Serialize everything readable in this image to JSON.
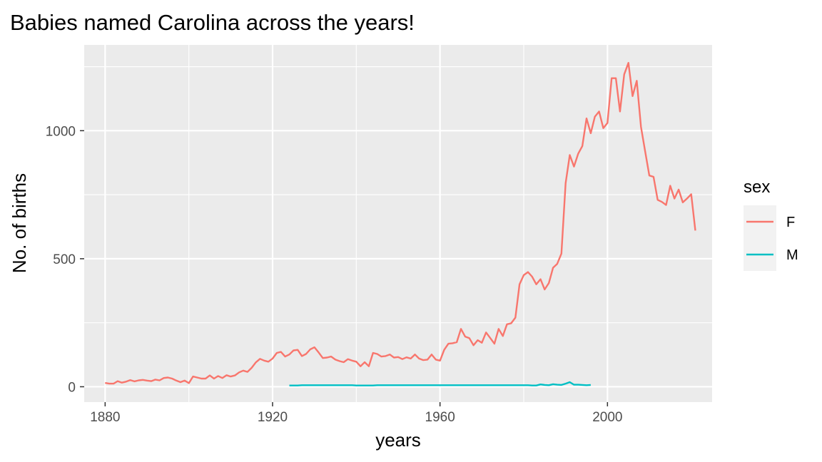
{
  "chart_data": {
    "type": "line",
    "title": "Babies named Carolina across the years!",
    "xlabel": "years",
    "ylabel": "No. of births",
    "xlim": [
      1875,
      2025
    ],
    "ylim": [
      -60,
      1335
    ],
    "x_ticks": [
      1880,
      1920,
      1960,
      2000
    ],
    "y_ticks": [
      0,
      500,
      1000
    ],
    "x_tick_labels": [
      "1880",
      "1920",
      "1960",
      "2000"
    ],
    "y_tick_labels": [
      "0",
      "500",
      "1000"
    ],
    "grid": true,
    "legend": {
      "title": "sex",
      "position": "right"
    },
    "series": [
      {
        "name": "F",
        "color": "#F8766D",
        "x": [
          1880,
          1881,
          1882,
          1883,
          1884,
          1885,
          1886,
          1887,
          1888,
          1889,
          1890,
          1891,
          1892,
          1893,
          1894,
          1895,
          1896,
          1897,
          1898,
          1899,
          1900,
          1901,
          1902,
          1903,
          1904,
          1905,
          1906,
          1907,
          1908,
          1909,
          1910,
          1911,
          1912,
          1913,
          1914,
          1915,
          1916,
          1917,
          1918,
          1919,
          1920,
          1921,
          1922,
          1923,
          1924,
          1925,
          1926,
          1927,
          1928,
          1929,
          1930,
          1931,
          1932,
          1933,
          1934,
          1935,
          1936,
          1937,
          1938,
          1939,
          1940,
          1941,
          1942,
          1943,
          1944,
          1945,
          1946,
          1947,
          1948,
          1949,
          1950,
          1951,
          1952,
          1953,
          1954,
          1955,
          1956,
          1957,
          1958,
          1959,
          1960,
          1961,
          1962,
          1963,
          1964,
          1965,
          1966,
          1967,
          1968,
          1969,
          1970,
          1971,
          1972,
          1973,
          1974,
          1975,
          1976,
          1977,
          1978,
          1979,
          1980,
          1981,
          1982,
          1983,
          1984,
          1985,
          1986,
          1987,
          1988,
          1989,
          1990,
          1991,
          1992,
          1993,
          1994,
          1995,
          1996,
          1997,
          1998,
          1999,
          2000,
          2001,
          2002,
          2003,
          2004,
          2005,
          2006,
          2007,
          2008,
          2009,
          2010,
          2011,
          2012,
          2013,
          2014,
          2015,
          2016,
          2017,
          2018,
          2019,
          2020,
          2021
        ],
        "values": [
          15,
          12,
          12,
          22,
          16,
          20,
          26,
          21,
          25,
          27,
          24,
          22,
          28,
          25,
          34,
          36,
          32,
          24,
          18,
          24,
          14,
          40,
          36,
          32,
          32,
          44,
          32,
          42,
          34,
          45,
          40,
          44,
          56,
          63,
          58,
          74,
          95,
          109,
          102,
          98,
          110,
          132,
          136,
          118,
          126,
          142,
          144,
          120,
          128,
          146,
          154,
          134,
          112,
          114,
          118,
          106,
          100,
          96,
          108,
          102,
          98,
          80,
          96,
          80,
          132,
          128,
          118,
          120,
          126,
          114,
          116,
          108,
          115,
          110,
          126,
          110,
          104,
          106,
          126,
          106,
          102,
          144,
          168,
          170,
          174,
          226,
          196,
          190,
          162,
          182,
          172,
          212,
          190,
          168,
          226,
          198,
          244,
          248,
          270,
          400,
          436,
          448,
          430,
          400,
          420,
          380,
          405,
          465,
          480,
          520,
          795,
          905,
          860,
          910,
          940,
          1048,
          990,
          1055,
          1075,
          1010,
          1030,
          1205,
          1205,
          1075,
          1220,
          1265,
          1135,
          1195,
          1015,
          920,
          825,
          820,
          730,
          722,
          710,
          785,
          735,
          770,
          720,
          735,
          752,
          610
        ]
      },
      {
        "name": "M",
        "color": "#00BFC4",
        "x": [
          1924,
          1925,
          1926,
          1927,
          1928,
          1929,
          1930,
          1931,
          1932,
          1933,
          1934,
          1935,
          1936,
          1937,
          1938,
          1939,
          1940,
          1941,
          1942,
          1943,
          1944,
          1945,
          1946,
          1947,
          1948,
          1949,
          1950,
          1951,
          1952,
          1953,
          1954,
          1955,
          1956,
          1957,
          1958,
          1959,
          1960,
          1961,
          1962,
          1963,
          1964,
          1965,
          1966,
          1967,
          1968,
          1969,
          1970,
          1971,
          1972,
          1973,
          1974,
          1975,
          1976,
          1977,
          1978,
          1979,
          1980,
          1981,
          1982,
          1983,
          1984,
          1985,
          1986,
          1987,
          1988,
          1989,
          1990,
          1991,
          1992,
          1993,
          1994,
          1995,
          1996
        ],
        "values": [
          5,
          5,
          5,
          6,
          6,
          6,
          6,
          6,
          6,
          6,
          6,
          6,
          6,
          6,
          6,
          6,
          5,
          5,
          5,
          5,
          5,
          6,
          6,
          6,
          6,
          6,
          6,
          6,
          6,
          6,
          6,
          6,
          6,
          6,
          6,
          6,
          6,
          6,
          6,
          6,
          6,
          6,
          6,
          6,
          6,
          6,
          6,
          6,
          6,
          6,
          6,
          6,
          6,
          6,
          6,
          6,
          6,
          6,
          5,
          5,
          9,
          7,
          6,
          10,
          8,
          7,
          12,
          18,
          8,
          8,
          7,
          6,
          7
        ]
      }
    ]
  }
}
